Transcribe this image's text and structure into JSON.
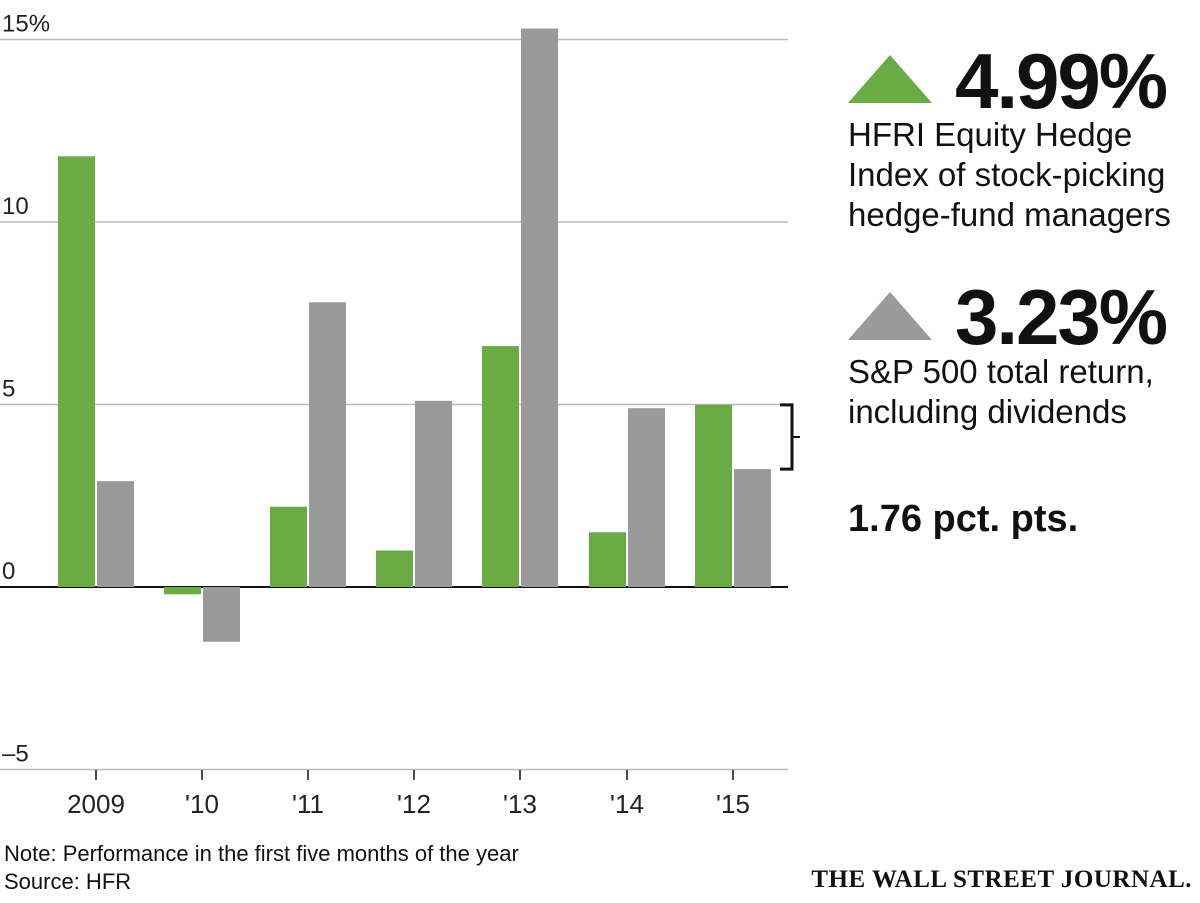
{
  "chart_data": {
    "type": "bar",
    "categories": [
      "2009",
      "'10",
      "'11",
      "'12",
      "'13",
      "'14",
      "'15"
    ],
    "series": [
      {
        "name": "HFRI Equity Hedge Index of stock-picking hedge-fund managers",
        "color": "#6aab46",
        "values": [
          11.8,
          -0.2,
          2.2,
          1.0,
          6.6,
          1.5,
          4.99
        ]
      },
      {
        "name": "S&P 500 total return, including dividends",
        "color": "#9a9a9a",
        "values": [
          2.9,
          -1.5,
          7.8,
          5.1,
          15.3,
          4.9,
          3.23
        ]
      }
    ],
    "ylim": [
      -5,
      15
    ],
    "yticks": [
      15,
      10,
      5,
      0,
      -5
    ],
    "ytick_labels": [
      "15%",
      "10",
      "5",
      "0",
      "–5"
    ],
    "grid": true
  },
  "legend": {
    "hfri_value": "4.99%",
    "hfri_lines": [
      "HFRI Equity Hedge",
      "Index of stock-picking",
      "hedge-fund managers"
    ],
    "sp_value": "3.23%",
    "sp_lines": [
      "S&P 500 total return,",
      "including dividends"
    ],
    "difference": "1.76 pct. pts."
  },
  "note": "Note: Performance in the first five months of the year",
  "source": "Source: HFR",
  "publisher": "THE WALL STREET JOURNAL."
}
